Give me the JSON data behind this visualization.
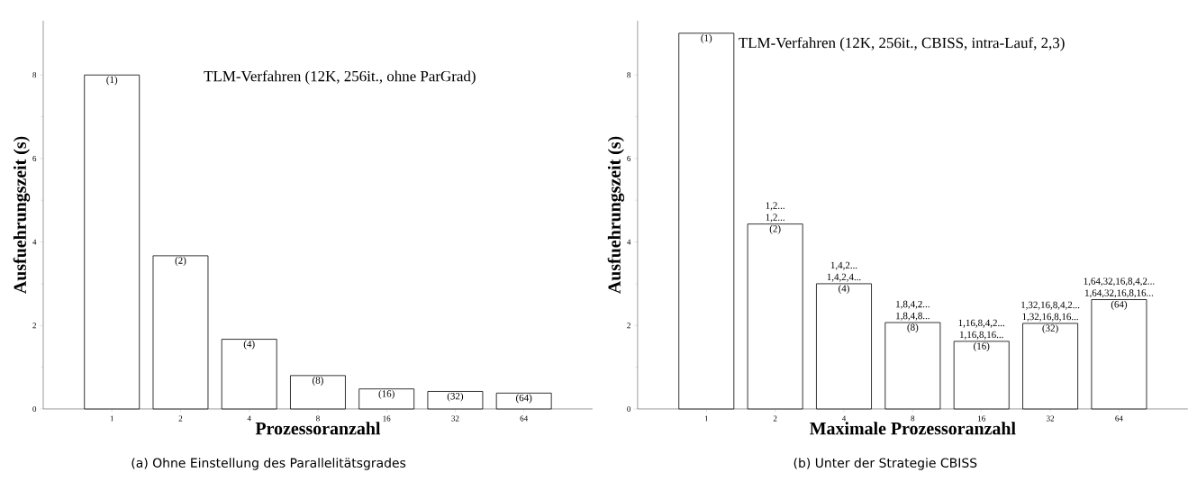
{
  "chart_data": [
    {
      "type": "bar",
      "title": "TLM-Verfahren (12K, 256it., ohne ParGrad)",
      "subtitle": "(a) Ohne Einstellung des Parallelitätsgrades",
      "xlabel": "Prozessoranzahl",
      "ylabel": "Ausfuehrungszeit (s)",
      "categories": [
        "1",
        "2",
        "4",
        "8",
        "16",
        "32",
        "64"
      ],
      "values": [
        8.0,
        3.67,
        1.67,
        0.8,
        0.48,
        0.42,
        0.38
      ],
      "color": "#ffffff",
      "ylim": [
        0,
        9.3
      ],
      "yticks": [
        0,
        2,
        4,
        6,
        8
      ],
      "annotations": [
        {
          "text": "(1)",
          "x": "1",
          "y": 8.0
        },
        {
          "text": "(2)",
          "x": "2",
          "y": 3.67
        },
        {
          "text": "(4)",
          "x": "4",
          "y": 1.67
        },
        {
          "text": "(8)",
          "x": "8",
          "y": 0.8
        },
        {
          "text": "(16)",
          "x": "16",
          "y": 0.48
        },
        {
          "text": "(32)",
          "x": "32",
          "y": 0.42
        },
        {
          "text": "(64)",
          "x": "64",
          "y": 0.38
        }
      ]
    },
    {
      "type": "bar",
      "title": "TLM-Verfahren (12K, 256it., CBISS, intra-Lauf, 2,3)",
      "subtitle": "(b) Unter der Strategie CBISS",
      "xlabel": "Maximale Prozessoranzahl",
      "ylabel": "Ausfuehrungszeit (s)",
      "categories": [
        "1",
        "2",
        "4",
        "8",
        "16",
        "32",
        "64"
      ],
      "values": [
        9.0,
        4.43,
        3.0,
        2.07,
        1.62,
        2.05,
        2.62
      ],
      "color": "#ffffff",
      "ylim": [
        0,
        9.3
      ],
      "yticks": [
        0,
        2,
        4,
        6,
        8
      ],
      "annotations": [
        {
          "text": "(1)",
          "x": "1",
          "y": 9.0
        },
        {
          "text": "(2)",
          "x": "2",
          "y": 4.43
        },
        {
          "text": "1,2...",
          "x": "2",
          "y": 4.43
        },
        {
          "text": "1,2...",
          "x": "2",
          "y": 4.43
        },
        {
          "text": "(4)",
          "x": "4",
          "y": 3.0
        },
        {
          "text": "1,4,2,4...",
          "x": "4",
          "y": 3.0
        },
        {
          "text": "1,4,2...",
          "x": "4",
          "y": 3.0
        },
        {
          "text": "(8)",
          "x": "8",
          "y": 2.07
        },
        {
          "text": "1,8,4,8...",
          "x": "8",
          "y": 2.07
        },
        {
          "text": "1,8,4,2...",
          "x": "8",
          "y": 2.07
        },
        {
          "text": "(16)",
          "x": "16",
          "y": 1.62
        },
        {
          "text": "1,16,8,16...",
          "x": "16",
          "y": 1.62
        },
        {
          "text": "1,16,8,4,2...",
          "x": "16",
          "y": 1.62
        },
        {
          "text": "(32)",
          "x": "32",
          "y": 2.05
        },
        {
          "text": "1,32,16,8,16...",
          "x": "32",
          "y": 2.05
        },
        {
          "text": "1,32,16,8,4,2...",
          "x": "32",
          "y": 2.05
        },
        {
          "text": "(64)",
          "x": "64",
          "y": 2.62
        },
        {
          "text": "1,64,32,16,8,16...",
          "x": "64",
          "y": 2.62
        },
        {
          "text": "1,64,32,16,8,4,2...",
          "x": "64",
          "y": 2.62
        }
      ]
    }
  ]
}
